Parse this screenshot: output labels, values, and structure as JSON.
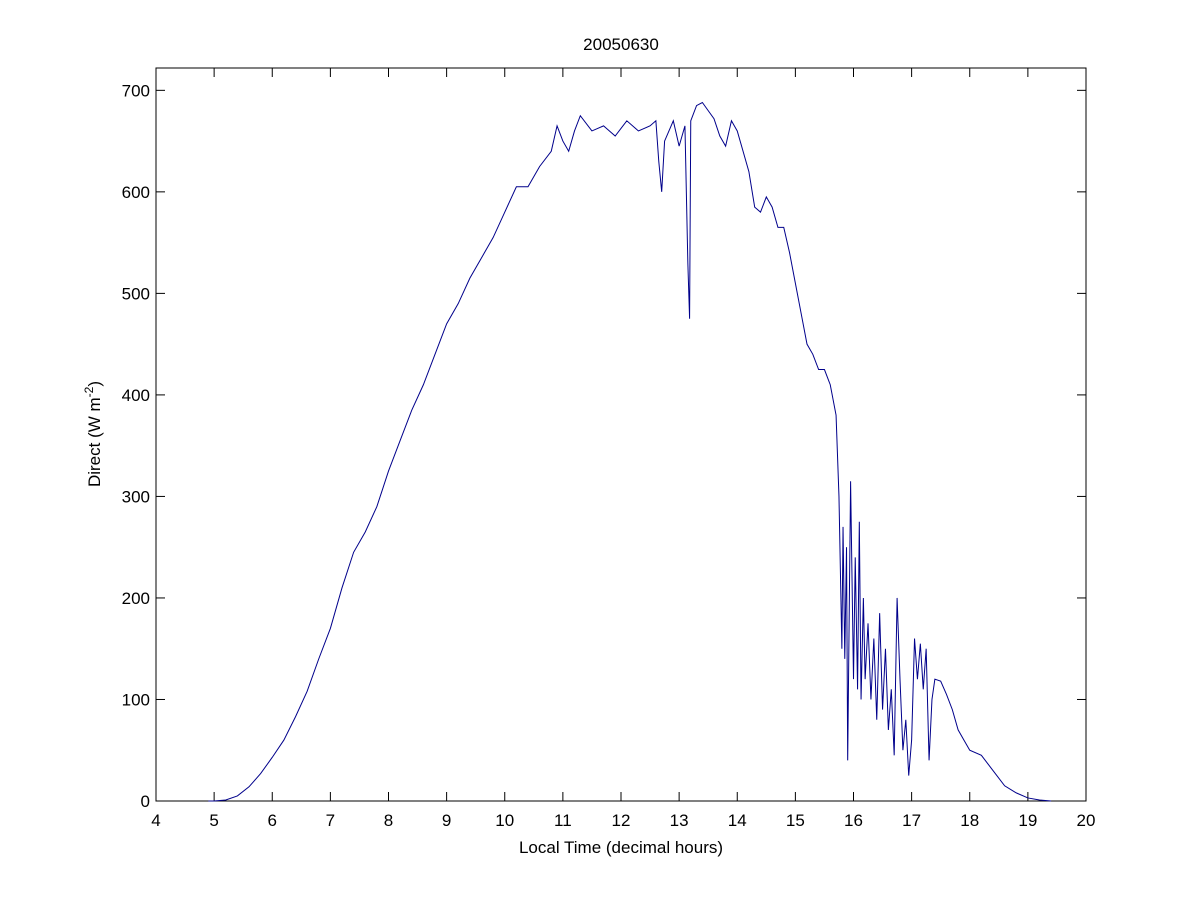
{
  "chart_data": {
    "type": "line",
    "title": "20050630",
    "xlabel": "Local Time (decimal hours)",
    "ylabel": {
      "text": "Direct (W m",
      "sup": "-2",
      "close": ")"
    },
    "xlim": [
      4,
      20
    ],
    "ylim": [
      0,
      722
    ],
    "xticks": [
      4,
      5,
      6,
      7,
      8,
      9,
      10,
      11,
      12,
      13,
      14,
      15,
      16,
      17,
      18,
      19,
      20
    ],
    "yticks": [
      0,
      100,
      200,
      300,
      400,
      500,
      600,
      700
    ],
    "series": [
      {
        "name": "Direct",
        "color": "#00008b",
        "x": [
          4.9,
          5.0,
          5.2,
          5.4,
          5.6,
          5.8,
          6.0,
          6.2,
          6.4,
          6.6,
          6.8,
          7.0,
          7.2,
          7.4,
          7.6,
          7.8,
          8.0,
          8.2,
          8.4,
          8.6,
          8.8,
          9.0,
          9.2,
          9.4,
          9.6,
          9.8,
          10.0,
          10.2,
          10.4,
          10.6,
          10.8,
          10.9,
          11.0,
          11.1,
          11.2,
          11.3,
          11.5,
          11.7,
          11.9,
          12.1,
          12.3,
          12.5,
          12.6,
          12.65,
          12.7,
          12.75,
          12.9,
          13.0,
          13.1,
          13.15,
          13.18,
          13.2,
          13.3,
          13.4,
          13.5,
          13.6,
          13.7,
          13.8,
          13.9,
          14.0,
          14.1,
          14.2,
          14.3,
          14.4,
          14.5,
          14.6,
          14.7,
          14.8,
          14.9,
          15.0,
          15.1,
          15.2,
          15.3,
          15.4,
          15.5,
          15.6,
          15.7,
          15.75,
          15.8,
          15.82,
          15.85,
          15.88,
          15.9,
          15.95,
          16.0,
          16.03,
          16.07,
          16.1,
          16.13,
          16.17,
          16.2,
          16.25,
          16.3,
          16.35,
          16.4,
          16.45,
          16.5,
          16.55,
          16.6,
          16.65,
          16.7,
          16.75,
          16.8,
          16.85,
          16.9,
          16.95,
          17.0,
          17.05,
          17.1,
          17.15,
          17.2,
          17.25,
          17.3,
          17.35,
          17.4,
          17.5,
          17.6,
          17.7,
          17.8,
          17.9,
          18.0,
          18.2,
          18.4,
          18.6,
          18.8,
          19.0,
          19.2,
          19.4
        ],
        "values": [
          0,
          0,
          1,
          5,
          14,
          27,
          43,
          60,
          83,
          108,
          140,
          170,
          210,
          245,
          265,
          290,
          325,
          355,
          385,
          410,
          440,
          470,
          490,
          515,
          535,
          555,
          580,
          605,
          605,
          625,
          640,
          665,
          650,
          640,
          660,
          675,
          660,
          665,
          655,
          670,
          660,
          665,
          670,
          630,
          600,
          650,
          670,
          645,
          665,
          530,
          475,
          670,
          685,
          688,
          680,
          672,
          655,
          645,
          670,
          660,
          640,
          620,
          585,
          580,
          595,
          585,
          565,
          565,
          540,
          510,
          480,
          450,
          440,
          425,
          425,
          410,
          380,
          300,
          150,
          270,
          140,
          250,
          40,
          315,
          120,
          240,
          110,
          275,
          100,
          200,
          120,
          175,
          100,
          160,
          80,
          185,
          90,
          150,
          70,
          110,
          45,
          200,
          120,
          50,
          80,
          25,
          60,
          160,
          120,
          155,
          110,
          150,
          40,
          100,
          120,
          118,
          105,
          90,
          70,
          60,
          50,
          45,
          30,
          15,
          8,
          3,
          1,
          0
        ]
      }
    ]
  }
}
